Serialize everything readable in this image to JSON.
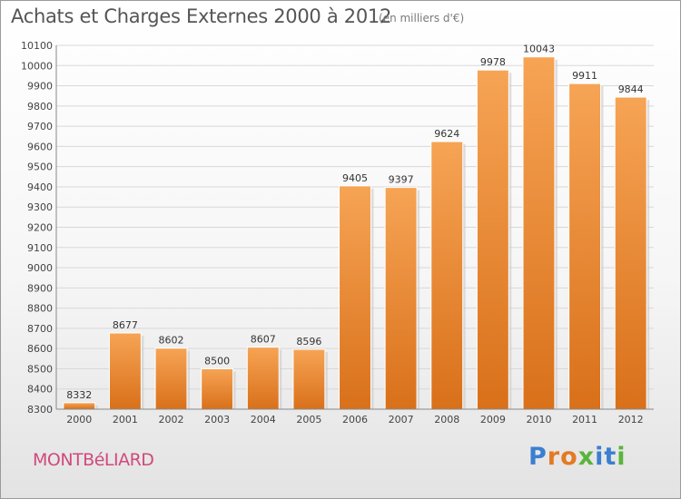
{
  "page": {
    "title": "Achats et Charges Externes 2000 à 2012",
    "subtitle": "(en milliers d'€)",
    "city": "MONTBéLIARD",
    "logo": {
      "letters": [
        "P",
        "r",
        "o",
        "x",
        "i",
        "t",
        "i"
      ],
      "colors": [
        "#3a7fd0",
        "#e47a22",
        "#e47a22",
        "#5ab43c",
        "#3a7fd0",
        "#3a7fd0",
        "#5ab43c"
      ]
    }
  },
  "chart_data": {
    "type": "bar",
    "title": "Achats et Charges Externes 2000 à 2012",
    "categories": [
      "2000",
      "2001",
      "2002",
      "2003",
      "2004",
      "2005",
      "2006",
      "2007",
      "2008",
      "2009",
      "2010",
      "2011",
      "2012"
    ],
    "values": [
      8332,
      8677,
      8602,
      8500,
      8607,
      8596,
      9405,
      9397,
      9624,
      9978,
      10043,
      9911,
      9844
    ],
    "ylim": [
      8300,
      10100
    ],
    "yticks": [
      8300,
      8400,
      8500,
      8600,
      8700,
      8800,
      8900,
      9000,
      9100,
      9200,
      9300,
      9400,
      9500,
      9600,
      9700,
      9800,
      9900,
      10000,
      10100
    ],
    "grid": true,
    "bar_color": "#f08c2e",
    "xlabel": "",
    "ylabel": ""
  }
}
